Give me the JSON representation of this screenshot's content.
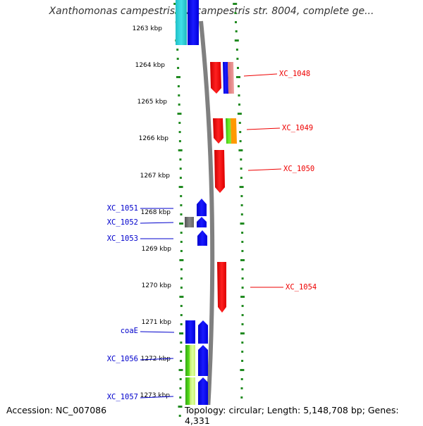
{
  "title": "Xanthomonas campestris pv. campestris str. 8004, complete ge...",
  "accession_label": "Accession: NC_007086",
  "topology_label": "Topology: circular; Length: 5,148,708 bp; Genes: 4,331",
  "ruler": {
    "ticks": [
      "1263 kbp",
      "1264 kbp",
      "1265 kbp",
      "1266 kbp",
      "1267 kbp",
      "1268 kbp",
      "1269 kbp",
      "1270 kbp",
      "1271 kbp",
      "1272 kbp",
      "1273 kbp"
    ]
  },
  "colors": {
    "label_right": "#ee0000",
    "label_left": "#0000cc",
    "backbone": "#808080",
    "tick_dots": "#228B22",
    "ruler_text": "#000000"
  },
  "labels_right": [
    "XC_1048",
    "XC_1049",
    "XC_1050",
    "XC_1054"
  ],
  "labels_left": [
    "XC_1051",
    "XC_1052",
    "XC_1053",
    "coaE",
    "XC_1056",
    "XC_1057"
  ]
}
